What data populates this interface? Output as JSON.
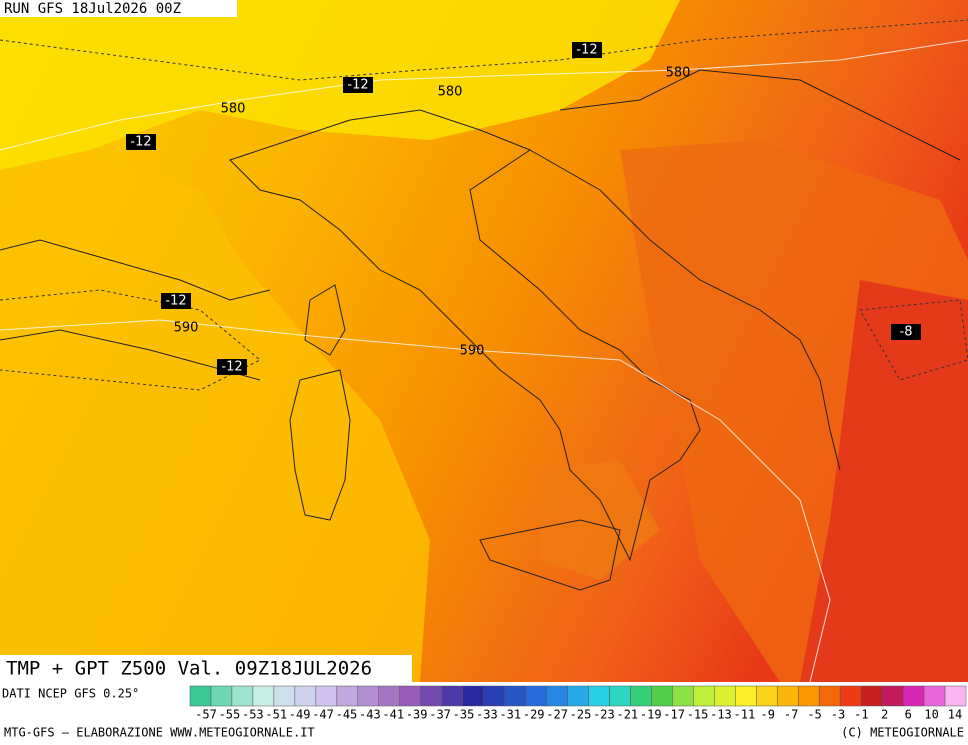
{
  "header": {
    "run": "RUN GFS 18Jul2026 00Z"
  },
  "map": {
    "title": "TMP + GPT Z500 Val. 09Z18JUL2026",
    "contour_labels": [
      {
        "text": "-12"
      },
      {
        "text": "-12"
      },
      {
        "text": "-12"
      },
      {
        "text": "-12"
      },
      {
        "text": "-12"
      },
      {
        "text": "-8"
      },
      {
        "text": "580"
      },
      {
        "text": "580"
      },
      {
        "text": "580"
      },
      {
        "text": "590"
      },
      {
        "text": "590"
      }
    ]
  },
  "legend": {
    "source": "DATI NCEP GFS 0.25°",
    "labels": [
      "-57",
      "-55",
      "-53",
      "-51",
      "-49",
      "-47",
      "-45",
      "-43",
      "-41",
      "-39",
      "-37",
      "-35",
      "-33",
      "-31",
      "-29",
      "-27",
      "-25",
      "-23",
      "-21",
      "-19",
      "-17",
      "-15",
      "-13",
      "-11",
      "-9",
      "-7",
      "-5",
      "-3",
      "-1",
      "2",
      "6",
      "10",
      "14"
    ]
  },
  "footer": {
    "left": "MTG-GFS — ELABORAZIONE WWW.METEOGIORNALE.IT",
    "right": "(C) METEOGIORNALE"
  }
}
